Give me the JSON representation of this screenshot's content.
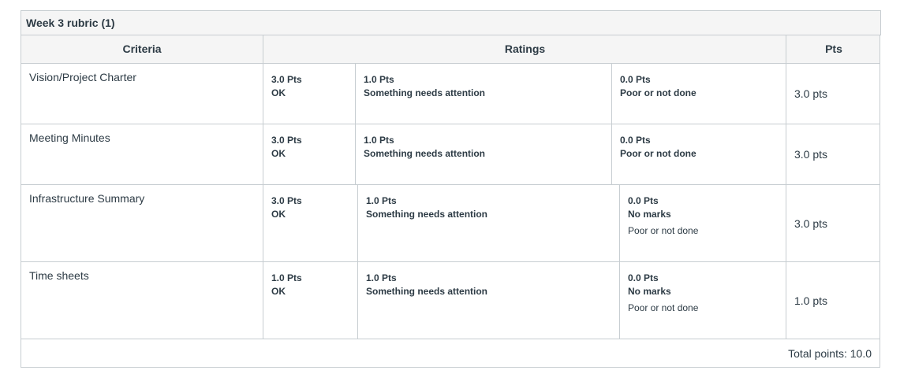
{
  "rubric": {
    "title": "Week 3 rubric (1)",
    "headers": {
      "criteria": "Criteria",
      "ratings": "Ratings",
      "pts": "Pts"
    },
    "rows": [
      {
        "criterion": "Vision/Project Charter",
        "ratings": [
          {
            "pts": "3.0 Pts",
            "desc": "OK",
            "long": ""
          },
          {
            "pts": "1.0 Pts",
            "desc": "Something needs attention",
            "long": ""
          },
          {
            "pts": "0.0 Pts",
            "desc": "Poor or not done",
            "long": ""
          }
        ],
        "points": "3.0 pts"
      },
      {
        "criterion": "Meeting Minutes",
        "ratings": [
          {
            "pts": "3.0 Pts",
            "desc": "OK",
            "long": ""
          },
          {
            "pts": "1.0 Pts",
            "desc": "Something needs attention",
            "long": ""
          },
          {
            "pts": "0.0 Pts",
            "desc": "Poor or not done",
            "long": ""
          }
        ],
        "points": "3.0 pts"
      },
      {
        "criterion": "Infrastructure Summary",
        "ratings": [
          {
            "pts": "3.0 Pts",
            "desc": "OK",
            "long": ""
          },
          {
            "pts": "1.0 Pts",
            "desc": "Something needs attention",
            "long": ""
          },
          {
            "pts": "0.0 Pts",
            "desc": "No marks",
            "long": "Poor or not done"
          }
        ],
        "points": "3.0 pts"
      },
      {
        "criterion": "Time sheets",
        "ratings": [
          {
            "pts": "1.0 Pts",
            "desc": "OK",
            "long": ""
          },
          {
            "pts": "1.0 Pts",
            "desc": "Something needs attention",
            "long": ""
          },
          {
            "pts": "0.0 Pts",
            "desc": "No marks",
            "long": "Poor or not done"
          }
        ],
        "points": "1.0 pts"
      }
    ],
    "total": "Total points: 10.0"
  }
}
